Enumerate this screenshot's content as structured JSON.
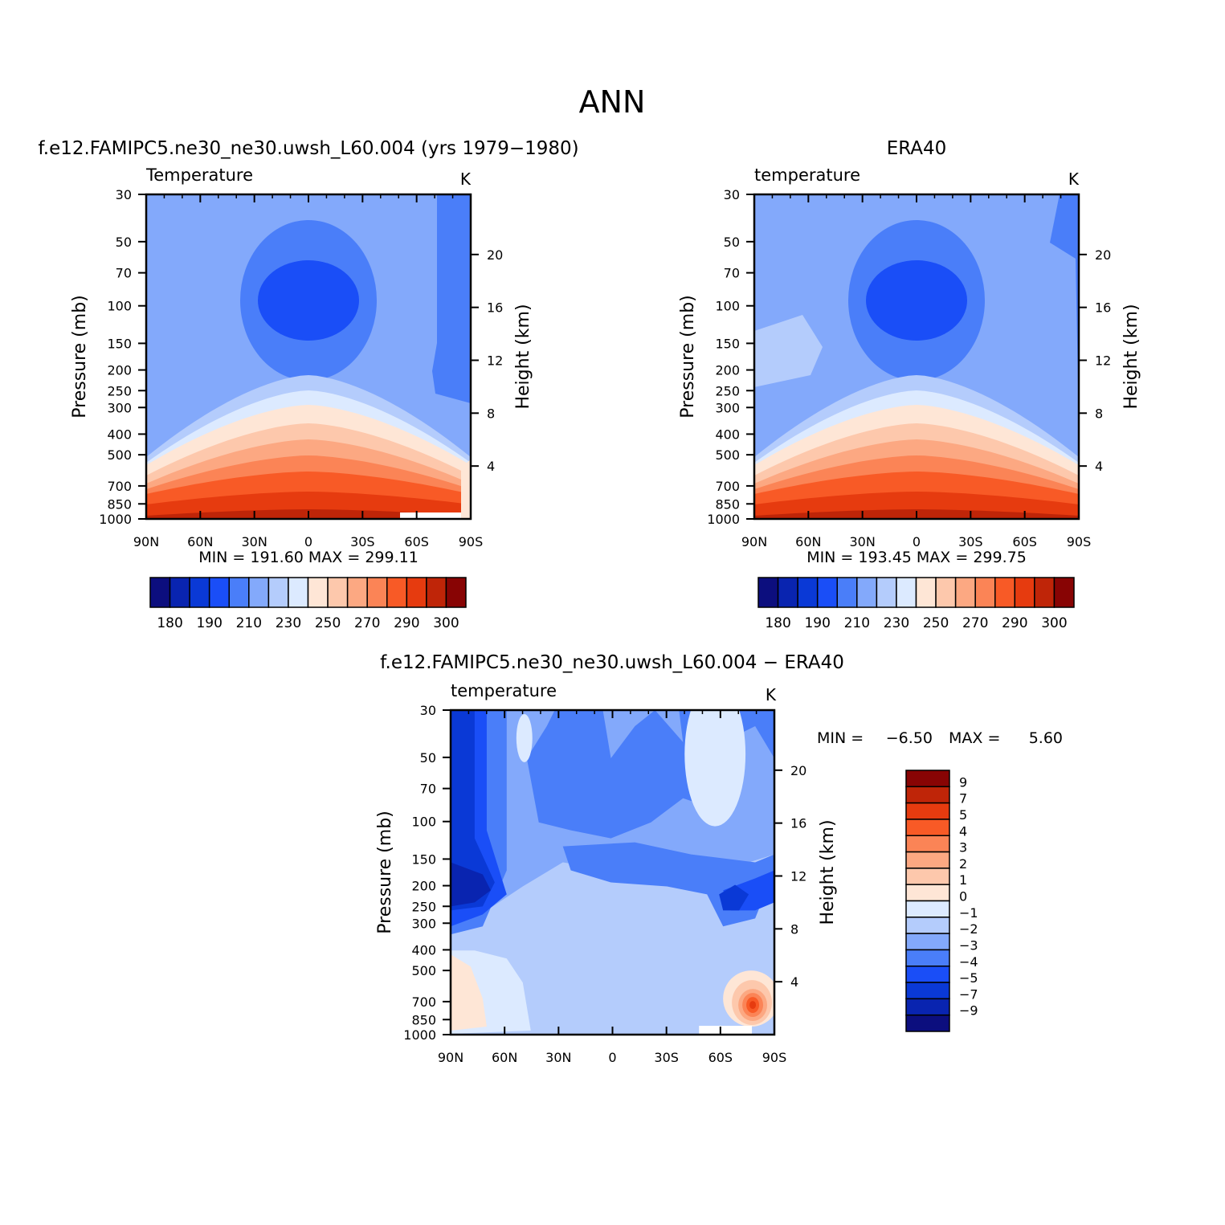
{
  "figure": {
    "main_title": "ANN"
  },
  "palette": {
    "abs": [
      "#0c0e7e",
      "#0924b0",
      "#0a39d6",
      "#1a4ef7",
      "#4a7ef9",
      "#83a9fb",
      "#b4ccfc",
      "#dceaff",
      "#fee6d6",
      "#fdc8ac",
      "#fca882",
      "#fb8456",
      "#f85a26",
      "#e63b0f",
      "#bf2508",
      "#880404"
    ],
    "diff": [
      "#880404",
      "#bf2508",
      "#e63b0f",
      "#f85a26",
      "#fb8456",
      "#fca882",
      "#fdc8ac",
      "#fee6d6",
      "#dceaff",
      "#b4ccfc",
      "#83a9fb",
      "#4a7ef9",
      "#1a4ef7",
      "#0a39d6",
      "#0924b0",
      "#0c0e7e"
    ],
    "white": "#ffffff"
  },
  "panels": [
    {
      "id": "model",
      "header": "f.e12.FAMIPC5.ne30_ne30.uwsh_L60.004 (yrs 1979−1980)",
      "var_label": "Temperature",
      "units": "K",
      "ylabel_left": "Pressure (mb)",
      "ylabel_right": "Height (km)",
      "minmax": "MIN = 191.60   MAX = 299.11"
    },
    {
      "id": "obs",
      "header": "ERA40",
      "var_label": "temperature",
      "units": "K",
      "ylabel_left": "Pressure (mb)",
      "ylabel_right": "Height (km)",
      "minmax": "MIN = 193.45   MAX = 299.75"
    },
    {
      "id": "diff",
      "header": "f.e12.FAMIPC5.ne30_ne30.uwsh_L60.004 − ERA40",
      "var_label": "temperature",
      "units": "K",
      "ylabel_left": "Pressure (mb)",
      "ylabel_right": "Height (km)",
      "min_label": "MIN =",
      "min_value": "−6.50",
      "max_label": "MAX =",
      "max_value": "5.60"
    }
  ],
  "axes": {
    "lat_ticks": [
      "90N",
      "60N",
      "30N",
      "0",
      "30S",
      "60S",
      "90S"
    ],
    "pressure_ticks": [
      "30",
      "50",
      "70",
      "100",
      "150",
      "200",
      "250",
      "300",
      "400",
      "500",
      "700",
      "850",
      "1000"
    ],
    "height_ticks": [
      "20",
      "16",
      "12",
      "8",
      "4"
    ]
  },
  "colorbars": {
    "abs_labels": [
      "180",
      "190",
      "210",
      "230",
      "250",
      "270",
      "290",
      "300"
    ],
    "diff_labels": [
      "9",
      "7",
      "5",
      "4",
      "3",
      "2",
      "1",
      "0",
      "−1",
      "−2",
      "−3",
      "−4",
      "−5",
      "−7",
      "−9"
    ]
  },
  "chart_data": [
    {
      "type": "heatmap",
      "title": "Temperature",
      "subtitle": "f.e12.FAMIPC5.ne30_ne30.uwsh_L60.004 (yrs 1979−1980)",
      "xlabel": "",
      "ylabel": "Pressure (mb)",
      "y2label": "Height (km)",
      "units": "K",
      "x_range": [
        "90N",
        "90S"
      ],
      "y_range_mb": [
        30,
        1000
      ],
      "y_scale": "log",
      "levels": [
        180,
        190,
        200,
        210,
        220,
        230,
        240,
        250,
        260,
        270,
        280,
        290,
        295,
        300
      ],
      "min": 191.6,
      "max": 299.11,
      "description_pattern": "cold tropical tropopause (~190 K near 100 mb, 0 lat); warm surface maximum ~299 K near equator at 1000 mb"
    },
    {
      "type": "heatmap",
      "title": "temperature",
      "subtitle": "ERA40",
      "xlabel": "",
      "ylabel": "Pressure (mb)",
      "y2label": "Height (km)",
      "units": "K",
      "x_range": [
        "90N",
        "90S"
      ],
      "y_range_mb": [
        30,
        1000
      ],
      "y_scale": "log",
      "levels": [
        180,
        190,
        200,
        210,
        220,
        230,
        240,
        250,
        260,
        270,
        280,
        290,
        295,
        300
      ],
      "min": 193.45,
      "max": 299.75
    },
    {
      "type": "heatmap",
      "title": "temperature",
      "subtitle": "f.e12.FAMIPC5.ne30_ne30.uwsh_L60.004 − ERA40",
      "xlabel": "",
      "ylabel": "Pressure (mb)",
      "y2label": "Height (km)",
      "units": "K",
      "x_range": [
        "90N",
        "90S"
      ],
      "y_range_mb": [
        30,
        1000
      ],
      "y_scale": "log",
      "levels": [
        -9,
        -7,
        -5,
        -4,
        -3,
        -2,
        -1,
        0,
        1,
        2,
        3,
        4,
        5,
        7,
        9
      ],
      "min": -6.5,
      "max": 5.6
    }
  ]
}
